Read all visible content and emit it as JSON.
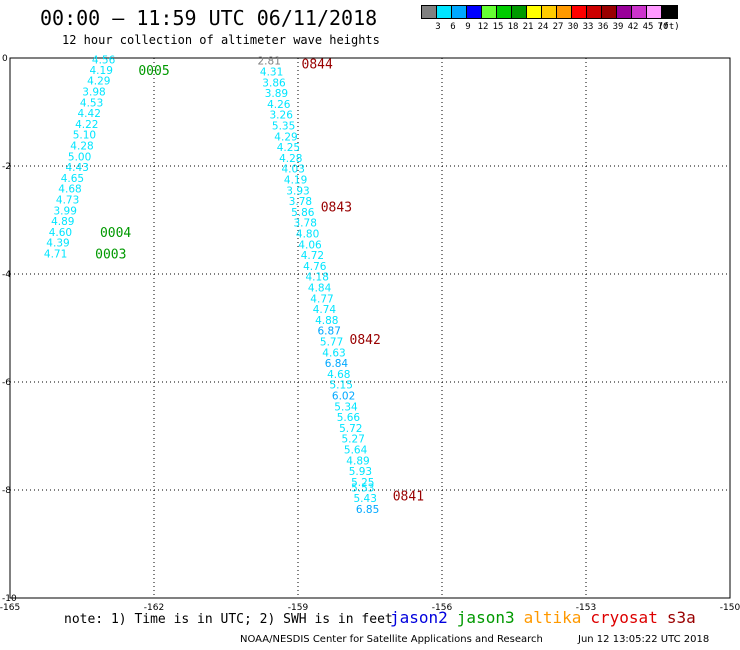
{
  "title": "00:00 – 11:59 UTC 06/11/2018",
  "subtitle": "12 hour collection of altimeter wave heights",
  "legend": {
    "unit": "(ft)",
    "bins": [
      {
        "label": "3",
        "color": "#808080"
      },
      {
        "label": "6",
        "color": "#00e5ff"
      },
      {
        "label": "9",
        "color": "#00a8ff"
      },
      {
        "label": "12",
        "color": "#0000ff"
      },
      {
        "label": "15",
        "color": "#66ff33"
      },
      {
        "label": "18",
        "color": "#00cc00"
      },
      {
        "label": "21",
        "color": "#009900"
      },
      {
        "label": "24",
        "color": "#ffff00"
      },
      {
        "label": "27",
        "color": "#ffcc00"
      },
      {
        "label": "30",
        "color": "#ff9900"
      },
      {
        "label": "33",
        "color": "#ff0000"
      },
      {
        "label": "36",
        "color": "#cc0000"
      },
      {
        "label": "39",
        "color": "#990000"
      },
      {
        "label": "42",
        "color": "#990099"
      },
      {
        "label": "45",
        "color": "#cc33cc"
      },
      {
        "label": "70",
        "color": "#ff99ff"
      },
      {
        "label": "",
        "color": "#000000"
      }
    ]
  },
  "note": "note: 1) Time is in UTC; 2) SWH is in feet",
  "satellites": [
    {
      "name": "jason2",
      "color": "#0000dd"
    },
    {
      "name": "jason3",
      "color": "#009900"
    },
    {
      "name": "altika",
      "color": "#ff9900"
    },
    {
      "name": "cryosat",
      "color": "#dd0000"
    },
    {
      "name": "s3a",
      "color": "#990000"
    }
  ],
  "credit": "NOAA/NESDIS Center for Satellite Applications and Research",
  "timestamp": "Jun 12 13:05:22 UTC 2018",
  "chart_data": {
    "type": "scatter",
    "xlabel": "",
    "ylabel": "",
    "xlim": [
      -165,
      -150
    ],
    "ylim": [
      -10,
      0
    ],
    "x_ticks": [
      "-165",
      "-162",
      "-159",
      "-156",
      "-153",
      "-150"
    ],
    "y_ticks": [
      "0",
      "-2",
      "-4",
      "-6",
      "-8",
      "-10"
    ],
    "grid": true,
    "tracks": [
      {
        "satellite": "jason3",
        "points": [
          {
            "lon": -163.05,
            "lat": -0.03,
            "swh": 4.56
          },
          {
            "lon": -163.1,
            "lat": -0.22,
            "swh": 4.19
          },
          {
            "lon": -163.15,
            "lat": -0.42,
            "swh": 4.29
          },
          {
            "lon": -163.25,
            "lat": -0.62,
            "swh": 3.98
          },
          {
            "lon": -163.3,
            "lat": -0.82,
            "swh": 4.53
          },
          {
            "lon": -163.35,
            "lat": -1.02,
            "swh": 4.42
          },
          {
            "lon": -163.4,
            "lat": -1.22,
            "swh": 4.22
          },
          {
            "lon": -163.45,
            "lat": -1.42,
            "swh": 5.1
          },
          {
            "lon": -163.5,
            "lat": -1.62,
            "swh": 4.28
          },
          {
            "lon": -163.55,
            "lat": -1.82,
            "swh": 5.0
          },
          {
            "lon": -163.6,
            "lat": -2.02,
            "swh": 4.43
          },
          {
            "lon": -163.7,
            "lat": -2.22,
            "swh": 4.65
          },
          {
            "lon": -163.75,
            "lat": -2.42,
            "swh": 4.68
          },
          {
            "lon": -163.8,
            "lat": -2.62,
            "swh": 4.73
          },
          {
            "lon": -163.85,
            "lat": -2.82,
            "swh": 3.99
          },
          {
            "lon": -163.9,
            "lat": -3.02,
            "swh": 4.89
          },
          {
            "lon": -163.95,
            "lat": -3.22,
            "swh": 4.6
          },
          {
            "lon": -164.0,
            "lat": -3.42,
            "swh": 4.39
          },
          {
            "lon": -164.05,
            "lat": -3.62,
            "swh": 4.71
          }
        ],
        "time_labels": [
          {
            "text": "0005",
            "lon": -162.0,
            "lat": -0.22
          },
          {
            "text": "0004",
            "lon": -162.8,
            "lat": -3.22
          },
          {
            "text": "0003",
            "lon": -162.9,
            "lat": -3.62
          }
        ]
      },
      {
        "satellite": "s3a",
        "points": [
          {
            "lon": -159.6,
            "lat": -0.05,
            "swh": 2.81
          },
          {
            "lon": -159.55,
            "lat": -0.25,
            "swh": 4.31
          },
          {
            "lon": -159.5,
            "lat": -0.45,
            "swh": 3.86
          },
          {
            "lon": -159.45,
            "lat": -0.65,
            "swh": 3.89
          },
          {
            "lon": -159.4,
            "lat": -0.85,
            "swh": 4.26
          },
          {
            "lon": -159.35,
            "lat": -1.05,
            "swh": 3.26
          },
          {
            "lon": -159.3,
            "lat": -1.25,
            "swh": 5.35
          },
          {
            "lon": -159.25,
            "lat": -1.45,
            "swh": 4.29
          },
          {
            "lon": -159.2,
            "lat": -1.65,
            "swh": 4.25
          },
          {
            "lon": -159.15,
            "lat": -1.85,
            "swh": 4.28
          },
          {
            "lon": -159.1,
            "lat": -2.05,
            "swh": 4.03
          },
          {
            "lon": -159.05,
            "lat": -2.25,
            "swh": 4.19
          },
          {
            "lon": -159.0,
            "lat": -2.45,
            "swh": 3.93
          },
          {
            "lon": -158.95,
            "lat": -2.65,
            "swh": 3.78
          },
          {
            "lon": -158.9,
            "lat": -2.85,
            "swh": 5.86
          },
          {
            "lon": -158.85,
            "lat": -3.05,
            "swh": 3.78
          },
          {
            "lon": -158.8,
            "lat": -3.25,
            "swh": 4.8
          },
          {
            "lon": -158.75,
            "lat": -3.45,
            "swh": 4.06
          },
          {
            "lon": -158.7,
            "lat": -3.65,
            "swh": 4.72
          },
          {
            "lon": -158.65,
            "lat": -3.85,
            "swh": 4.76
          },
          {
            "lon": -158.6,
            "lat": -4.05,
            "swh": 4.18
          },
          {
            "lon": -158.55,
            "lat": -4.25,
            "swh": 4.84
          },
          {
            "lon": -158.5,
            "lat": -4.45,
            "swh": 4.77
          },
          {
            "lon": -158.45,
            "lat": -4.65,
            "swh": 4.74
          },
          {
            "lon": -158.4,
            "lat": -4.85,
            "swh": 4.88
          },
          {
            "lon": -158.35,
            "lat": -5.05,
            "swh": 6.87
          },
          {
            "lon": -158.3,
            "lat": -5.25,
            "swh": 5.77
          },
          {
            "lon": -158.25,
            "lat": -5.45,
            "swh": 4.63
          },
          {
            "lon": -158.2,
            "lat": -5.65,
            "swh": 6.84
          },
          {
            "lon": -158.15,
            "lat": -5.85,
            "swh": 4.68
          },
          {
            "lon": -158.1,
            "lat": -6.05,
            "swh": 5.15
          },
          {
            "lon": -158.05,
            "lat": -6.25,
            "swh": 6.02
          },
          {
            "lon": -158.0,
            "lat": -6.45,
            "swh": 5.34
          },
          {
            "lon": -157.95,
            "lat": -6.65,
            "swh": 5.66
          },
          {
            "lon": -157.9,
            "lat": -6.85,
            "swh": 5.72
          },
          {
            "lon": -157.85,
            "lat": -7.05,
            "swh": 5.27
          },
          {
            "lon": -157.8,
            "lat": -7.25,
            "swh": 5.64
          },
          {
            "lon": -157.75,
            "lat": -7.45,
            "swh": 4.89
          },
          {
            "lon": -157.7,
            "lat": -7.65,
            "swh": 5.93
          },
          {
            "lon": -157.65,
            "lat": -7.85,
            "swh": 5.25
          },
          {
            "lon": -157.65,
            "lat": -7.95,
            "swh": 5.53
          },
          {
            "lon": -157.6,
            "lat": -8.15,
            "swh": 5.43
          },
          {
            "lon": -157.55,
            "lat": -8.35,
            "swh": 6.85
          }
        ],
        "time_labels": [
          {
            "text": "0844",
            "lon": -158.6,
            "lat": -0.1
          },
          {
            "text": "0843",
            "lon": -158.2,
            "lat": -2.75
          },
          {
            "text": "0842",
            "lon": -157.6,
            "lat": -5.2
          },
          {
            "text": "0841",
            "lon": -156.7,
            "lat": -8.1
          }
        ]
      }
    ]
  }
}
